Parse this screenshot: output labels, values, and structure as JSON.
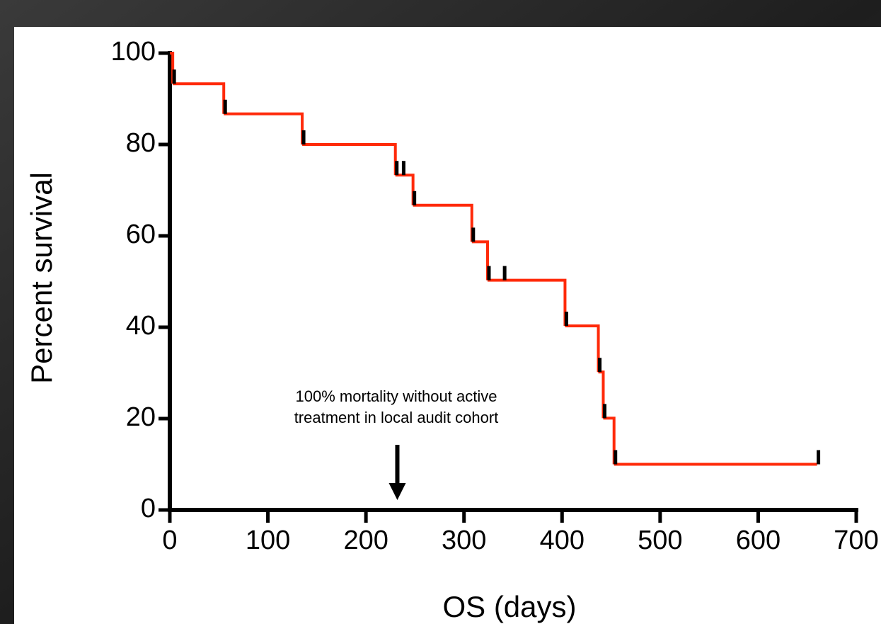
{
  "chart_data": {
    "type": "survival",
    "xlabel": "OS (days)",
    "ylabel": "Percent survival",
    "annotation": [
      "100% mortality without active",
      "treatment in local audit cohort"
    ],
    "annotation_x": 232,
    "x": [
      0,
      3,
      55,
      135,
      230,
      248,
      308,
      324,
      403,
      437,
      442,
      453,
      660
    ],
    "values": [
      100,
      93.3,
      86.7,
      80,
      73.3,
      66.7,
      58.7,
      50.3,
      40.3,
      30.2,
      20.1,
      10,
      10
    ],
    "color": "#ff2a0a",
    "censored": {
      "x": [
        3,
        55,
        135,
        230,
        237,
        248,
        308,
        324,
        340,
        403,
        437,
        442,
        453,
        660
      ],
      "values": [
        93.3,
        86.7,
        80,
        73.3,
        73.3,
        66.7,
        58.7,
        50.3,
        50.3,
        40.3,
        30.2,
        20.1,
        10,
        10
      ],
      "color": "#000000"
    },
    "xlim": [
      0,
      700
    ],
    "xticks": [
      0,
      100,
      200,
      300,
      400,
      500,
      600,
      700
    ],
    "ylim": [
      0,
      100
    ],
    "yticks": [
      0,
      20,
      40,
      60,
      80,
      100
    ]
  }
}
